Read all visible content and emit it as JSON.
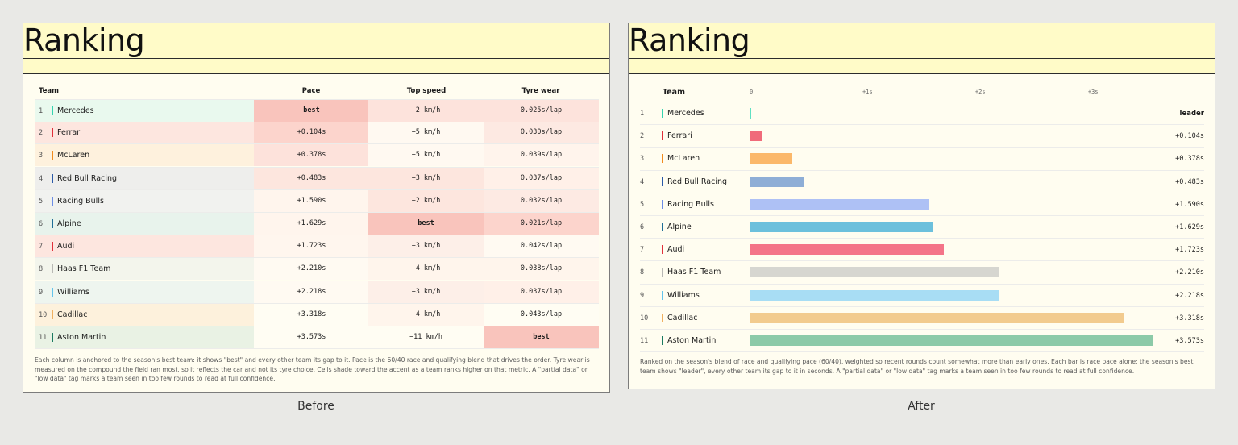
{
  "before": {
    "title": "Ranking",
    "columns": [
      "Team",
      "Pace",
      "Top speed",
      "Tyre wear"
    ],
    "rows": [
      {
        "rank": "1",
        "team": "Mercedes",
        "team_color": "#36d4b0",
        "team_bg": "#e9f9ee",
        "pace": "best",
        "speed": "−2 km/h",
        "wear": "0.025s/lap",
        "pace_bg": "#f9c4bc",
        "speed_bg": "#fde3dc",
        "wear_bg": "#fde3dc",
        "pace_best": true,
        "speed_best": false,
        "wear_best": false
      },
      {
        "rank": "2",
        "team": "Ferrari",
        "team_color": "#e1303b",
        "team_bg": "#fde6df",
        "pace": "+0.104s",
        "speed": "−5 km/h",
        "wear": "0.030s/lap",
        "pace_bg": "#fcd4cc",
        "speed_bg": "#fff9f1",
        "wear_bg": "#fde9e2",
        "pace_best": false,
        "speed_best": false,
        "wear_best": false
      },
      {
        "rank": "3",
        "team": "McLaren",
        "team_color": "#f28b1e",
        "team_bg": "#fef1dd",
        "pace": "+0.378s",
        "speed": "−5 km/h",
        "wear": "0.039s/lap",
        "pace_bg": "#fde2db",
        "speed_bg": "#fff9f1",
        "wear_bg": "#fff4ec",
        "pace_best": false,
        "speed_best": false,
        "wear_best": false
      },
      {
        "rank": "4",
        "team": "Red Bull Racing",
        "team_color": "#2a5aa8",
        "team_bg": "#eeeeec",
        "pace": "+0.483s",
        "speed": "−3 km/h",
        "wear": "0.037s/lap",
        "pace_bg": "#fde6de",
        "speed_bg": "#fde6de",
        "wear_bg": "#fff0e8",
        "pace_best": false,
        "speed_best": false,
        "wear_best": false
      },
      {
        "rank": "5",
        "team": "Racing Bulls",
        "team_color": "#6d8ee6",
        "team_bg": "#f1f2ef",
        "pace": "+1.590s",
        "speed": "−2 km/h",
        "wear": "0.032s/lap",
        "pace_bg": "#fff5ed",
        "speed_bg": "#fde6de",
        "wear_bg": "#fdeae3",
        "pace_best": false,
        "speed_best": false,
        "wear_best": false
      },
      {
        "rank": "6",
        "team": "Alpine",
        "team_color": "#1f6e97",
        "team_bg": "#e8f3ec",
        "pace": "+1.629s",
        "speed": "best",
        "wear": "0.021s/lap",
        "pace_bg": "#fff5ed",
        "speed_bg": "#f9c4bc",
        "wear_bg": "#fcd4cc",
        "pace_best": false,
        "speed_best": true,
        "wear_best": false
      },
      {
        "rank": "7",
        "team": "Audi",
        "team_color": "#e1303b",
        "team_bg": "#fde6df",
        "pace": "+1.723s",
        "speed": "−3 km/h",
        "wear": "0.042s/lap",
        "pace_bg": "#fff6ee",
        "speed_bg": "#fdefe8",
        "wear_bg": "#fffaf2",
        "pace_best": false,
        "speed_best": false,
        "wear_best": false
      },
      {
        "rank": "8",
        "team": "Haas F1 Team",
        "team_color": "#b8b8b4",
        "team_bg": "#f3f5ec",
        "pace": "+2.210s",
        "speed": "−4 km/h",
        "wear": "0.038s/lap",
        "pace_bg": "#fffaf2",
        "speed_bg": "#fff5ec",
        "wear_bg": "#fff5ec",
        "pace_best": false,
        "speed_best": false,
        "wear_best": false
      },
      {
        "rank": "9",
        "team": "Williams",
        "team_color": "#64c4ec",
        "team_bg": "#eef5ef",
        "pace": "+2.218s",
        "speed": "−3 km/h",
        "wear": "0.037s/lap",
        "pace_bg": "#fffaf2",
        "speed_bg": "#fdefe8",
        "wear_bg": "#fff0e8",
        "pace_best": false,
        "speed_best": false,
        "wear_best": false
      },
      {
        "rank": "10",
        "team": "Cadillac",
        "team_color": "#f0b060",
        "team_bg": "#fdf1dc",
        "pace": "+3.318s",
        "speed": "−4 km/h",
        "wear": "0.043s/lap",
        "pace_bg": "#fffdf3",
        "speed_bg": "#fff5ec",
        "wear_bg": "#fffdf3",
        "pace_best": false,
        "speed_best": false,
        "wear_best": false
      },
      {
        "rank": "11",
        "team": "Aston Martin",
        "team_color": "#1a7a60",
        "team_bg": "#e9f2e4",
        "pace": "+3.573s",
        "speed": "−11 km/h",
        "wear": "best",
        "pace_bg": "#fffdf3",
        "speed_bg": "#fffdf3",
        "wear_bg": "#f9c4bc",
        "pace_best": false,
        "speed_best": false,
        "wear_best": true
      }
    ],
    "note": "Each column is anchored to the season's best team: it shows \"best\" and every other team its gap to it. Pace is the 60/40 race and qualifying blend that drives the order. Tyre wear is measured on the compound the field ran most, so it reflects the car and not its tyre choice. Cells shade toward the accent as a team ranks higher on that metric. A \"partial data\" or \"low data\" tag marks a team seen in too few rounds to read at full confidence.",
    "caption": "Before"
  },
  "after": {
    "title": "Ranking",
    "team_label": "Team",
    "ticks": [
      "0",
      "+1s",
      "+2s",
      "+3s"
    ],
    "tick_values": [
      0,
      1,
      2,
      3
    ],
    "x_max": 3.573,
    "rows": [
      {
        "rank": "1",
        "team": "Mercedes",
        "team_color": "#36d4b0",
        "gap_s": 0,
        "gap_label": "leader",
        "bar_color": "#5fe0c2"
      },
      {
        "rank": "2",
        "team": "Ferrari",
        "team_color": "#e1303b",
        "gap_s": 0.104,
        "gap_label": "+0.104s",
        "bar_color": "#f06b7a"
      },
      {
        "rank": "3",
        "team": "McLaren",
        "team_color": "#f28b1e",
        "gap_s": 0.378,
        "gap_label": "+0.378s",
        "bar_color": "#fbb86a"
      },
      {
        "rank": "4",
        "team": "Red Bull Racing",
        "team_color": "#2a5aa8",
        "gap_s": 0.483,
        "gap_label": "+0.483s",
        "bar_color": "#8eaed6"
      },
      {
        "rank": "5",
        "team": "Racing Bulls",
        "team_color": "#6d8ee6",
        "gap_s": 1.59,
        "gap_label": "+1.590s",
        "bar_color": "#aec1f5"
      },
      {
        "rank": "6",
        "team": "Alpine",
        "team_color": "#1f6e97",
        "gap_s": 1.629,
        "gap_label": "+1.629s",
        "bar_color": "#6cc0dc"
      },
      {
        "rank": "7",
        "team": "Audi",
        "team_color": "#e1303b",
        "gap_s": 1.723,
        "gap_label": "+1.723s",
        "bar_color": "#f47488"
      },
      {
        "rank": "8",
        "team": "Haas F1 Team",
        "team_color": "#b8b8b4",
        "gap_s": 2.21,
        "gap_label": "+2.210s",
        "bar_color": "#d6d6d0"
      },
      {
        "rank": "9",
        "team": "Williams",
        "team_color": "#64c4ec",
        "gap_s": 2.218,
        "gap_label": "+2.218s",
        "bar_color": "#a8ddf4"
      },
      {
        "rank": "10",
        "team": "Cadillac",
        "team_color": "#f0b060",
        "gap_s": 3.318,
        "gap_label": "+3.318s",
        "bar_color": "#f2cb8e"
      },
      {
        "rank": "11",
        "team": "Aston Martin",
        "team_color": "#1a7a60",
        "gap_s": 3.573,
        "gap_label": "+3.573s",
        "bar_color": "#8ccaa8"
      }
    ],
    "note": "Ranked on the season's blend of race and qualifying pace (60/40), weighted so recent rounds count somewhat more than early ones. Each bar is race pace alone: the season's best team shows \"leader\", every other team its gap to it in seconds. A \"partial data\" or \"low data\" tag marks a team seen in too few rounds to read at full confidence.",
    "caption": "After"
  }
}
